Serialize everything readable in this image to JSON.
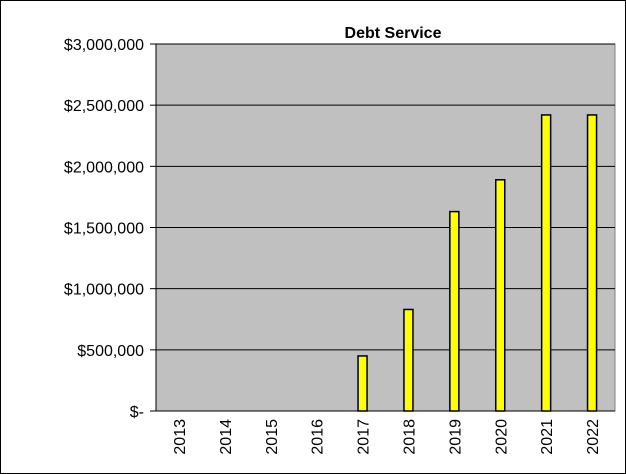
{
  "chart_data": {
    "type": "bar",
    "title": "Debt  Service",
    "xlabel": "",
    "ylabel": "",
    "categories": [
      "2013",
      "2014",
      "2015",
      "2016",
      "2017",
      "2018",
      "2019",
      "2020",
      "2021",
      "2022"
    ],
    "values": [
      0,
      0,
      0,
      0,
      450000,
      830000,
      1630000,
      1890000,
      2420000,
      2420000
    ],
    "ylim": [
      0,
      3000000
    ],
    "y_ticks": [
      0,
      500000,
      1000000,
      1500000,
      2000000,
      2500000,
      3000000
    ],
    "y_tick_labels": [
      "$-",
      "$500,000",
      "$1,000,000",
      "$1,500,000",
      "$2,000,000",
      "$2,500,000",
      "$3,000,000"
    ],
    "grid": true,
    "legend": "none",
    "colors": {
      "bar_fill": "#ffff00",
      "bar_stroke": "#000000",
      "plot_background": "#c0c0c0",
      "gridline": "#000000"
    }
  }
}
